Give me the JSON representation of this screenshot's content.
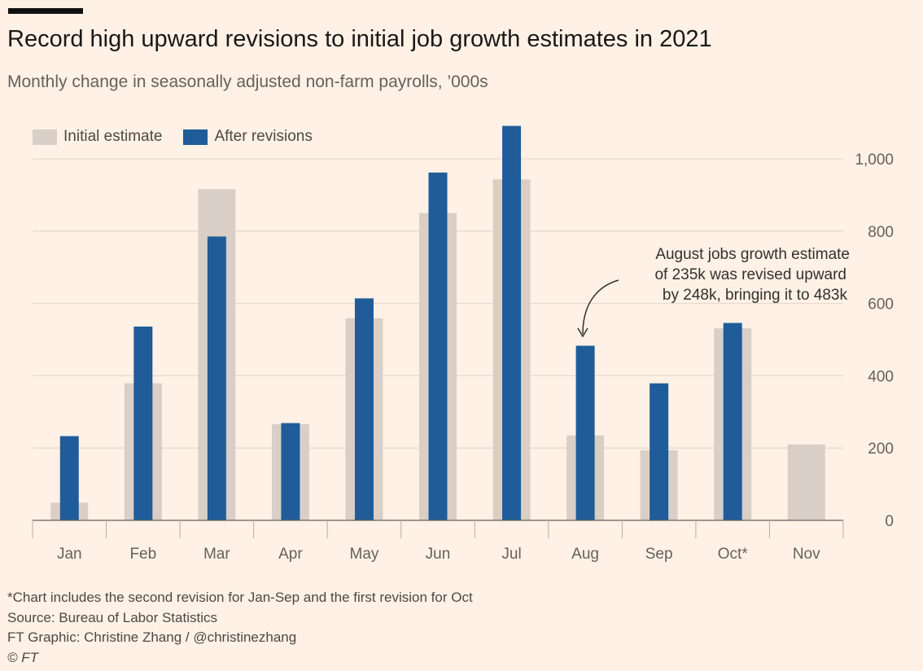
{
  "title": "Record high upward revisions to initial job growth estimates in 2021",
  "subtitle": "Monthly change in seasonally adjusted non-farm payrolls, ’000s",
  "legend": [
    {
      "label": "Initial estimate",
      "color": "#D9CFC7"
    },
    {
      "label": "After revisions",
      "color": "#1F5C99"
    }
  ],
  "annotation": {
    "lines": [
      "August jobs growth estimate",
      "of 235k was revised upward",
      "by 248k, bringing it to 483k"
    ]
  },
  "footer": {
    "note": "*Chart includes the second revision for Jan-Sep and the first revision for Oct",
    "source": "Source: Bureau of Labor Statistics",
    "credit": "FT Graphic: Christine Zhang / @christinezhang",
    "copyright": "© FT"
  },
  "chart_data": {
    "type": "bar",
    "title": "Record high upward revisions to initial job growth estimates in 2021",
    "subtitle": "Monthly change in seasonally adjusted non-farm payrolls, ’000s",
    "categories": [
      "Jan",
      "Feb",
      "Mar",
      "Apr",
      "May",
      "Jun",
      "Jul",
      "Aug",
      "Sep",
      "Oct*",
      "Nov"
    ],
    "series": [
      {
        "name": "Initial estimate",
        "color": "#D9CFC7",
        "values": [
          49,
          379,
          916,
          266,
          559,
          850,
          943,
          235,
          194,
          531,
          210
        ]
      },
      {
        "name": "After revisions",
        "color": "#1F5C99",
        "values": [
          233,
          536,
          785,
          269,
          614,
          962,
          1091,
          483,
          379,
          546,
          null
        ]
      }
    ],
    "ylim": [
      0,
      1100
    ],
    "yticks": [
      0,
      200,
      400,
      600,
      800,
      1000
    ],
    "ytick_labels": [
      "0",
      "200",
      "400",
      "600",
      "800",
      "1,000"
    ],
    "y_axis_position": "right",
    "grid": true,
    "legend_position": "top-left"
  }
}
